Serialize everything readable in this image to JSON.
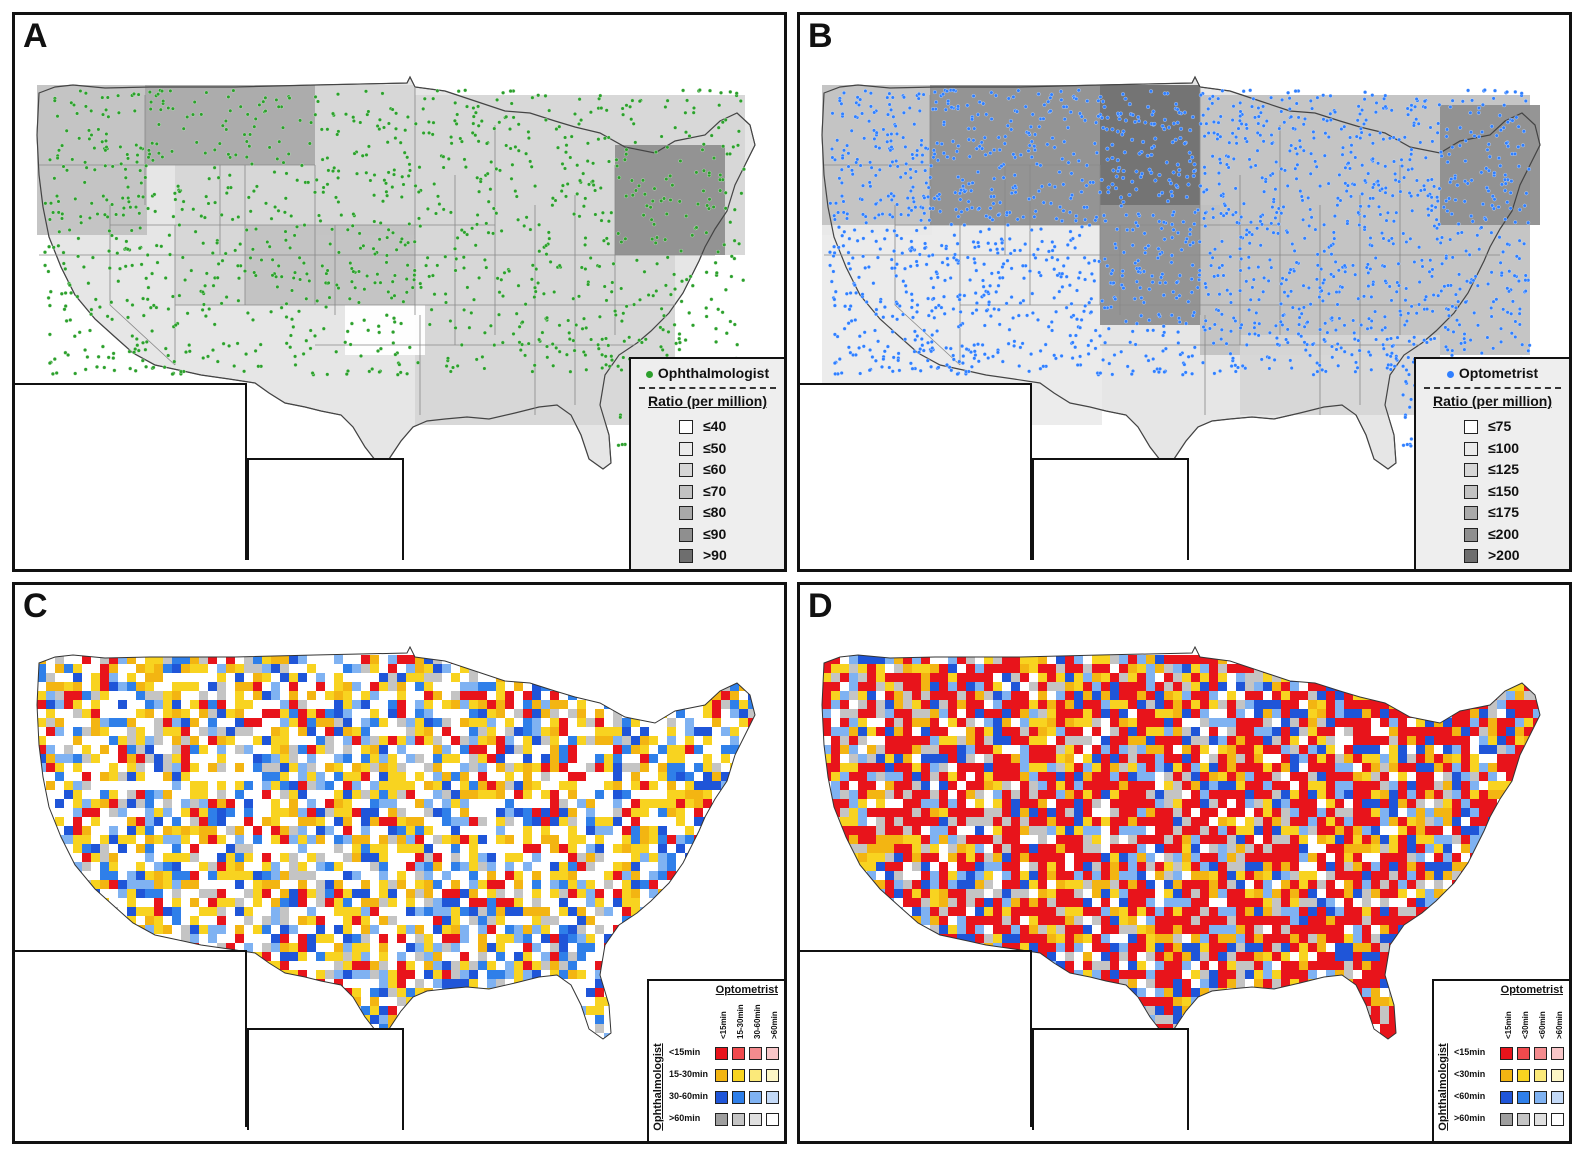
{
  "panels": {
    "a": {
      "letter": "A",
      "legend_title": "Ophthalmologist",
      "legend_subtitle": "Ratio (per million)",
      "dot_color": "#2ca02c",
      "classes": [
        "≤40",
        "≤50",
        "≤60",
        "≤70",
        "≤80",
        "≤90",
        ">90"
      ]
    },
    "b": {
      "letter": "B",
      "legend_title": "Optometrist",
      "legend_subtitle": "Ratio (per million)",
      "dot_color": "#2f7fff",
      "classes": [
        "≤75",
        "≤100",
        "≤125",
        "≤150",
        "≤175",
        "≤200",
        ">200"
      ]
    },
    "c": {
      "letter": "C",
      "legend_col_title": "Optometrist",
      "legend_row_title": "Ophthalmologist",
      "cols": [
        "<15min",
        "15-30min",
        "30-60min",
        ">60min"
      ],
      "rows": [
        "<15min",
        "15-30min",
        "30-60min",
        ">60min"
      ]
    },
    "d": {
      "letter": "D",
      "legend_col_title": "Optometrist",
      "legend_row_title": "Ophthalmologist",
      "cols": [
        "<15min",
        "<30min",
        "<60min",
        ">60min"
      ],
      "rows": [
        "<15min",
        "<30min",
        "<60min",
        ">60min"
      ]
    }
  },
  "colors": {
    "ratio_scale": [
      "#ffffff",
      "#ebebeb",
      "#d6d6d6",
      "#c2c2c2",
      "#a9a9a9",
      "#8f8f8f",
      "#6e6e6e"
    ],
    "bivariate": [
      [
        "#e8141b",
        "#f04a4d",
        "#f48b8e",
        "#f8c6c8"
      ],
      [
        "#f3b512",
        "#f8d320",
        "#fbe97a",
        "#fdf6c6"
      ],
      [
        "#1f55d8",
        "#2f7fe9",
        "#7fb2f2",
        "#c4daf8"
      ],
      [
        "#9e9e9e",
        "#c4c4c4",
        "#e0e0e0",
        "#ffffff"
      ]
    ]
  }
}
